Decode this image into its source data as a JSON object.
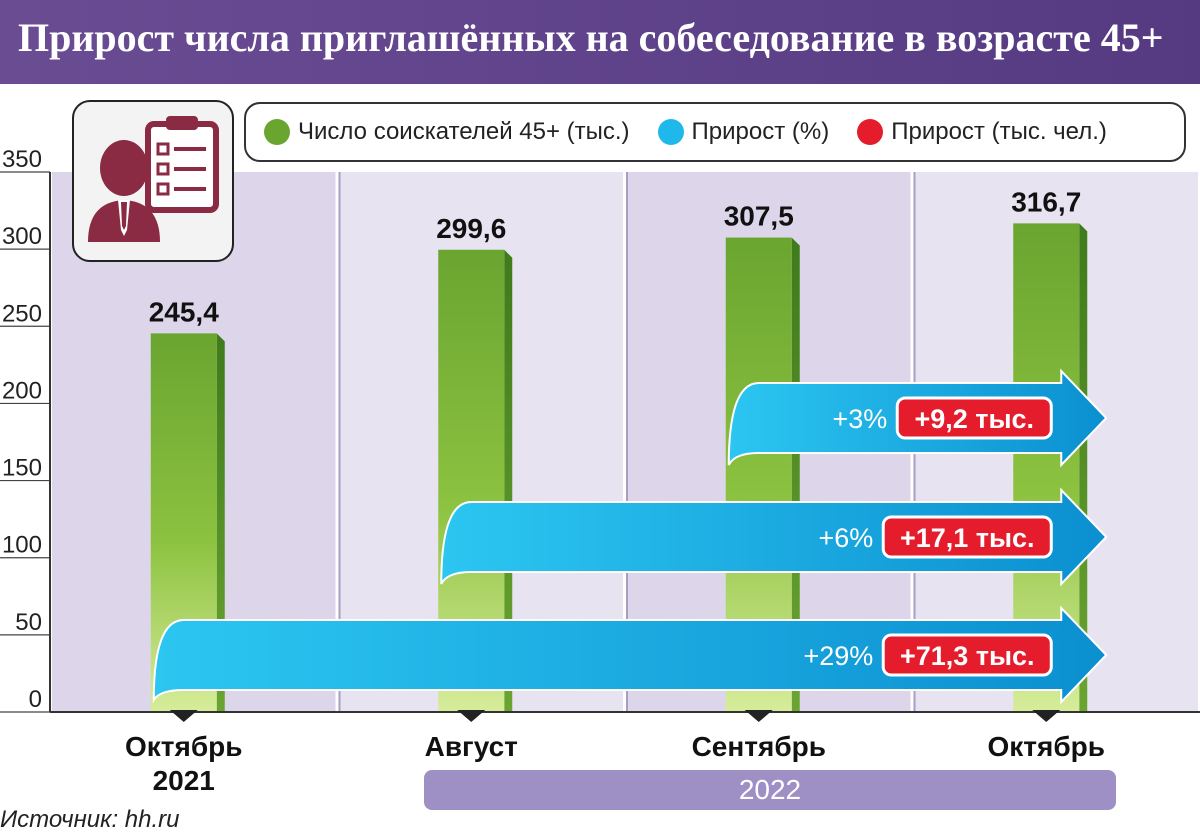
{
  "title": "Прирост числа приглашённых на собеседование в возрасте 45+",
  "legend": [
    {
      "label": "Число соискателей 45+ (тыс.)",
      "color": "#6aa530"
    },
    {
      "label": "Прирост (%)",
      "color": "#1fb8ea"
    },
    {
      "label": "Прирост (тыс. чел.)",
      "color": "#e41c2c"
    }
  ],
  "icon": "candidate-checklist-icon",
  "year_band": "2022",
  "source": "Источник: hh.ru",
  "chart_data": {
    "type": "bar",
    "categories": [
      "Октябрь 2021",
      "Август",
      "Сентябрь",
      "Октябрь"
    ],
    "category_lines": [
      [
        "Октябрь",
        "2021"
      ],
      [
        "Август"
      ],
      [
        "Сентябрь"
      ],
      [
        "Октябрь"
      ]
    ],
    "values": [
      245.4,
      299.6,
      307.5,
      316.7
    ],
    "value_labels": [
      "245,4",
      "299,6",
      "307,5",
      "316,7"
    ],
    "ylim": [
      0,
      350
    ],
    "yticks": [
      0,
      50,
      100,
      150,
      200,
      250,
      300,
      350
    ],
    "grid": "vertical",
    "colors": {
      "bar": "#6aa530",
      "bar_fade": "#d7ec9a",
      "arrow": "#1fb8ea",
      "badge": "#e41c2c",
      "band": "#ddd6ea"
    },
    "arrows": [
      {
        "from": "Сентябрь",
        "to": "Октябрь",
        "percent": "+3%",
        "abs": "+9,2 тыс."
      },
      {
        "from": "Август",
        "to": "Октябрь",
        "percent": "+6%",
        "abs": "+17,1 тыс."
      },
      {
        "from": "Октябрь 2021",
        "to": "Октябрь",
        "percent": "+29%",
        "abs": "+71,3 тыс."
      }
    ]
  }
}
